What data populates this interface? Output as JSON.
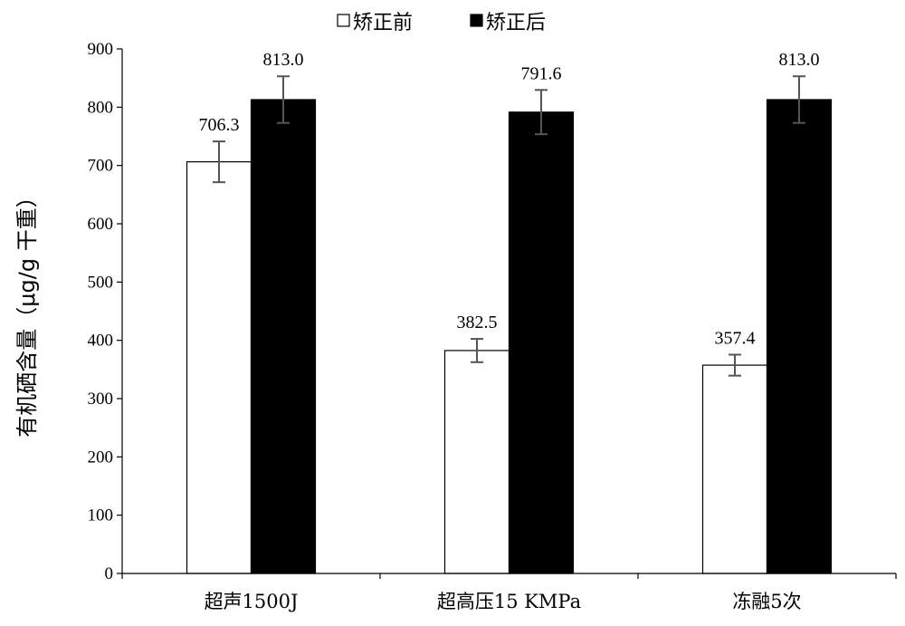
{
  "chart_data": {
    "type": "bar",
    "title": "",
    "xlabel": "",
    "ylabel": "有机硒含量（μg/g 干重）",
    "ylim": [
      0,
      900
    ],
    "yticks": [
      0,
      100,
      200,
      300,
      400,
      500,
      600,
      700,
      800,
      900
    ],
    "categories": [
      "超声1500J",
      "超高压15 KMPa",
      "冻融5次"
    ],
    "series": [
      {
        "name": "矫正前",
        "color": "#ffffff",
        "values": [
          706.3,
          382.5,
          357.4
        ],
        "labels": [
          "706.3",
          "382.5",
          "357.4"
        ],
        "error": [
          35,
          20,
          18
        ]
      },
      {
        "name": "矫正后",
        "color": "#000000",
        "values": [
          813.0,
          791.6,
          813.0
        ],
        "labels": [
          "813.0",
          "791.6",
          "813.0"
        ],
        "error": [
          40,
          38,
          40
        ]
      }
    ],
    "legend_position": "top-center",
    "grid": false
  }
}
